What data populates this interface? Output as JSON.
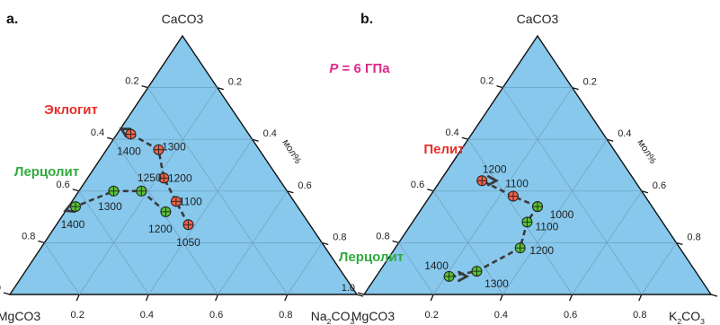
{
  "figure": {
    "pressure_label": "P = 6 ГПа",
    "pressure_symbol": "P",
    "pressure_rest": " = 6 ГПа",
    "colors": {
      "triangle_fill": "#87c8ec",
      "grid": "#6f9fbd",
      "red_marker": "#f25f47",
      "green_marker": "#58c135",
      "red_label": "#e8302a",
      "green_label": "#2faa3e",
      "pressure_label": "#e0288a",
      "path": "#3a3a3a"
    }
  },
  "chart_data": [
    {
      "type": "scatter",
      "subtype": "ternary",
      "panel_label": "a.",
      "apex_labels": {
        "top": "CaCO3",
        "left": "MgCO3",
        "right": "Na2CO3"
      },
      "axis_label": "мол%",
      "ticks": [
        "0.2",
        "0.4",
        "0.6",
        "0.8",
        "1.0"
      ],
      "units": "mole fraction (Ca, Mg, Na)",
      "series": [
        {
          "name": "Эклогит",
          "color": "red",
          "points": [
            {
              "label": "1050",
              "ca": 0.27,
              "mg": 0.35,
              "na": 0.38
            },
            {
              "label": "1100",
              "ca": 0.36,
              "mg": 0.34,
              "na": 0.3
            },
            {
              "label": "1200",
              "ca": 0.45,
              "mg": 0.33,
              "na": 0.22
            },
            {
              "label": "1300",
              "ca": 0.56,
              "mg": 0.29,
              "na": 0.15
            },
            {
              "label": "1400",
              "ca": 0.62,
              "mg": 0.34,
              "na": 0.04
            }
          ]
        },
        {
          "name": "Лерцолит",
          "color": "green",
          "points": [
            {
              "label": "1200",
              "ca": 0.32,
              "mg": 0.39,
              "na": 0.29
            },
            {
              "label": "1250",
              "ca": 0.4,
              "mg": 0.42,
              "na": 0.18
            },
            {
              "label": "1300",
              "ca": 0.4,
              "mg": 0.5,
              "na": 0.1
            },
            {
              "label": "1400",
              "ca": 0.34,
              "mg": 0.64,
              "na": 0.02
            }
          ]
        }
      ]
    },
    {
      "type": "scatter",
      "subtype": "ternary",
      "panel_label": "b.",
      "apex_labels": {
        "top": "CaCO3",
        "left": "MgCO3",
        "right": "K2CO3"
      },
      "axis_label": "мол%",
      "ticks": [
        "0.2",
        "0.4",
        "0.6",
        "0.8",
        "1.0"
      ],
      "units": "mole fraction (Ca, Mg, K)",
      "series": [
        {
          "name": "Пелит",
          "color": "red",
          "points": [
            {
              "label": "1000",
              "ca": 0.34,
              "mg": 0.33,
              "na": 0.33
            },
            {
              "label": "1100",
              "ca": 0.38,
              "mg": 0.38,
              "na": 0.24
            },
            {
              "label": "1200",
              "ca": 0.44,
              "mg": 0.44,
              "na": 0.12
            },
            {
              "label": "",
              "ca": 0.44,
              "mg": 0.43,
              "na": 0.13
            }
          ]
        },
        {
          "name": "Лерцолит",
          "color": "green",
          "points": [
            {
              "label": "1000",
              "ca": 0.34,
              "mg": 0.33,
              "na": 0.33
            },
            {
              "label": "1100",
              "ca": 0.28,
              "mg": 0.39,
              "na": 0.33
            },
            {
              "label": "1200",
              "ca": 0.18,
              "mg": 0.46,
              "na": 0.36
            },
            {
              "label": "1300",
              "ca": 0.09,
              "mg": 0.63,
              "na": 0.28
            },
            {
              "label": "1400",
              "ca": 0.07,
              "mg": 0.72,
              "na": 0.21
            },
            {
              "label": "",
              "ca": 0.07,
              "mg": 0.7,
              "na": 0.23
            }
          ]
        }
      ]
    }
  ]
}
